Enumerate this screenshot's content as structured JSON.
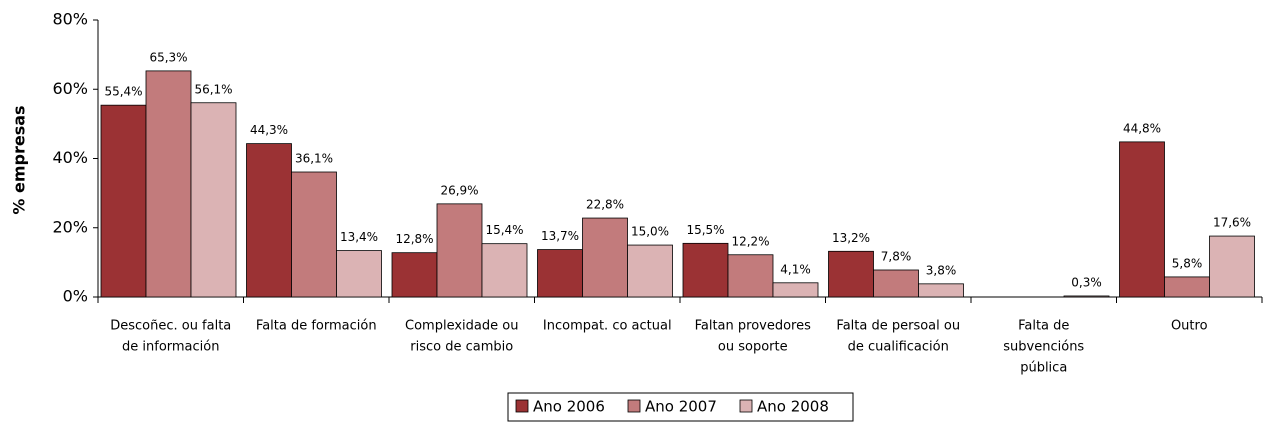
{
  "chart_data": {
    "type": "bar",
    "y_label": "% empresas",
    "categories": [
      [
        "Descoñec. ou falta",
        "de información"
      ],
      [
        "Falta de formación"
      ],
      [
        "Complexidade ou",
        "risco de cambio"
      ],
      [
        "Incompat. co actual"
      ],
      [
        "Faltan provedores",
        "ou soporte"
      ],
      [
        "Falta de persoal ou",
        "de cualificación"
      ],
      [
        "Falta de",
        "subvencións",
        "pública"
      ],
      [
        "Outro"
      ]
    ],
    "series": [
      {
        "name": "Ano 2006",
        "color": "#9b3234",
        "values": [
          55.4,
          44.3,
          12.8,
          13.7,
          15.5,
          13.2,
          null,
          44.8
        ],
        "value_labels": [
          "55,4%",
          "44,3%",
          "12,8%",
          "13,7%",
          "15,5%",
          "13,2%",
          null,
          "44,8%"
        ]
      },
      {
        "name": "Ano 2007",
        "color": "#c27b7c",
        "values": [
          65.3,
          36.1,
          26.9,
          22.8,
          12.2,
          7.8,
          null,
          5.8
        ],
        "value_labels": [
          "65,3%",
          "36,1%",
          "26,9%",
          "22,8%",
          "12,2%",
          "7,8%",
          null,
          "5,8%"
        ]
      },
      {
        "name": "Ano 2008",
        "color": "#dbb3b4",
        "values": [
          56.1,
          13.4,
          15.4,
          15.0,
          4.1,
          3.8,
          0.3,
          17.6
        ],
        "value_labels": [
          "56,1%",
          "13,4%",
          "15,4%",
          "15,0%",
          "4,1%",
          "3,8%",
          "0,3%",
          "17,6%"
        ]
      }
    ],
    "ylim": [
      0,
      80
    ],
    "yticks": [
      {
        "value": 0,
        "label": "0%"
      },
      {
        "value": 20,
        "label": "20%"
      },
      {
        "value": 40,
        "label": "40%"
      },
      {
        "value": 60,
        "label": "60%"
      },
      {
        "value": 80,
        "label": "80%"
      }
    ],
    "legend": "bottom"
  }
}
